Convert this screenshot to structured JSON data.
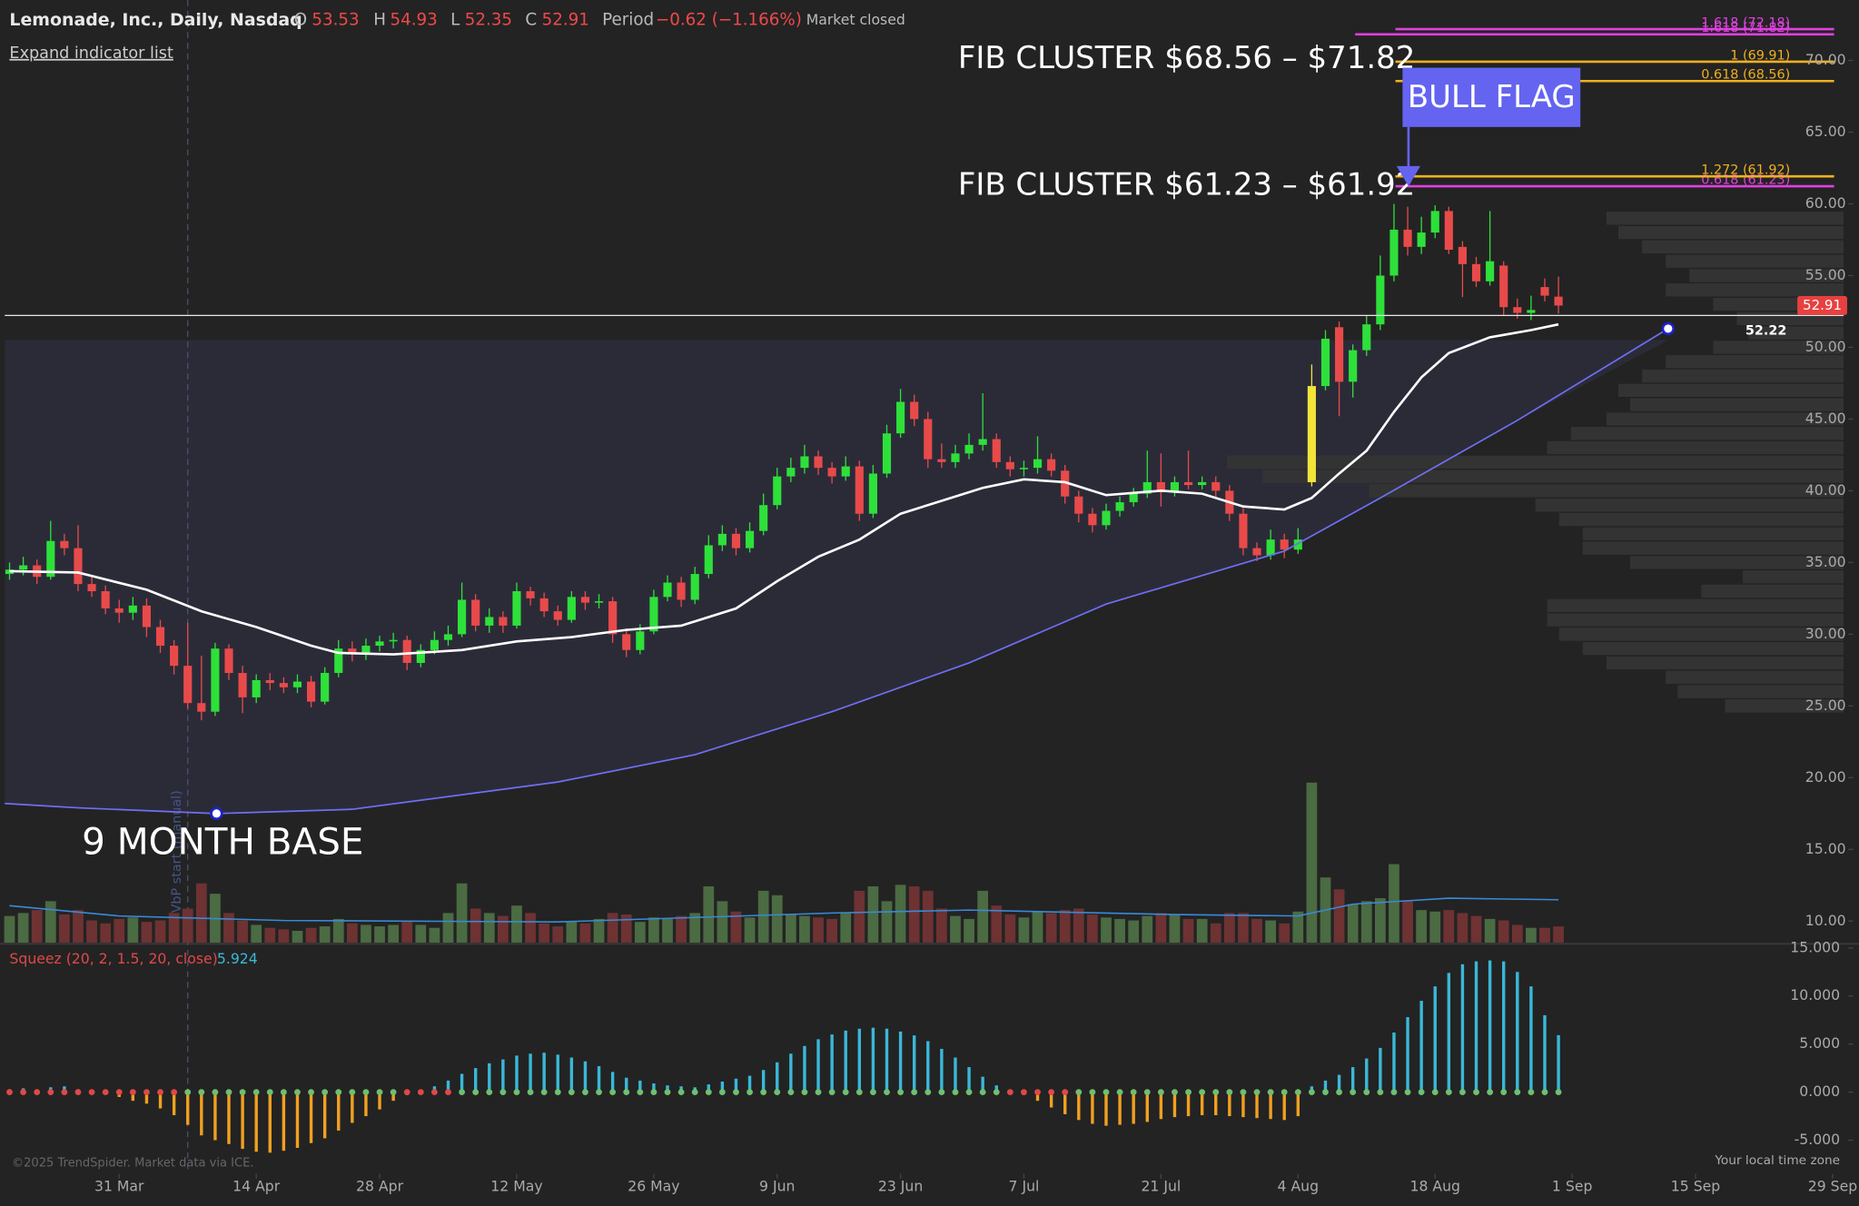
{
  "chart_data": {
    "type": "candlestick",
    "title": "Lemonade, Inc., Daily, Nasdaq",
    "ohlc_labels": [
      "O",
      "H",
      "L",
      "C"
    ],
    "period_label": "Period",
    "period": "−0.62 (−1.166%)",
    "status": "Market closed",
    "expand": "Expand indicator list",
    "xlim": [
      -0.35,
      133.8
    ],
    "xticks": [
      {
        "value": 8,
        "label": "31 Mar"
      },
      {
        "value": 18,
        "label": "14 Apr"
      },
      {
        "value": 27,
        "label": "28 Apr"
      },
      {
        "value": 37,
        "label": "12 May"
      },
      {
        "value": 47,
        "label": "26 May"
      },
      {
        "value": 56,
        "label": "9 Jun"
      },
      {
        "value": 65,
        "label": "23 Jun"
      },
      {
        "value": 74,
        "label": "7 Jul"
      },
      {
        "value": 84,
        "label": "21 Jul"
      },
      {
        "value": 94,
        "label": "4 Aug"
      },
      {
        "value": 104,
        "label": "18 Aug"
      },
      {
        "value": 114,
        "label": "1 Sep"
      },
      {
        "value": 123,
        "label": "15 Sep"
      },
      {
        "value": 133,
        "label": "29 Sep"
      }
    ],
    "ylim": [
      8.5,
      74.2
    ],
    "yticks": [
      {
        "value": 10,
        "label": "10.00"
      },
      {
        "value": 15,
        "label": "15.00"
      },
      {
        "value": 20,
        "label": "20.00"
      },
      {
        "value": 25,
        "label": "25.00"
      },
      {
        "value": 30,
        "label": "30.00"
      },
      {
        "value": 35,
        "label": "35.00"
      },
      {
        "value": 40,
        "label": "40.00"
      },
      {
        "value": 45,
        "label": "45.00"
      },
      {
        "value": 50,
        "label": "50.00"
      },
      {
        "value": 55,
        "label": "55.00"
      },
      {
        "value": 60,
        "label": "60.00"
      },
      {
        "value": 65,
        "label": "65.00"
      },
      {
        "value": 70,
        "label": "70.00"
      }
    ],
    "up_color": "#2ee03a",
    "down_color": "#e84a4a",
    "highlight_index": 95,
    "highlight_color": "#f2e43a",
    "candles": [
      [
        34.2,
        35.0,
        33.8,
        34.5
      ],
      [
        34.5,
        35.4,
        34.1,
        34.8
      ],
      [
        34.8,
        35.2,
        33.5,
        34.0
      ],
      [
        34.0,
        37.9,
        33.8,
        36.5
      ],
      [
        36.5,
        37.0,
        35.5,
        36.0
      ],
      [
        36.0,
        37.6,
        33.0,
        33.5
      ],
      [
        33.5,
        34.0,
        32.6,
        33.0
      ],
      [
        33.0,
        33.4,
        31.4,
        31.8
      ],
      [
        31.8,
        32.4,
        30.8,
        31.5
      ],
      [
        31.5,
        32.6,
        31.0,
        32.0
      ],
      [
        32.0,
        32.5,
        29.8,
        30.5
      ],
      [
        30.5,
        31.0,
        28.7,
        29.2
      ],
      [
        29.2,
        29.6,
        27.2,
        27.8
      ],
      [
        27.8,
        30.8,
        24.8,
        25.2
      ],
      [
        25.2,
        28.5,
        24.0,
        24.6
      ],
      [
        24.6,
        29.4,
        24.3,
        29.0
      ],
      [
        29.0,
        29.3,
        26.8,
        27.3
      ],
      [
        27.3,
        27.8,
        24.5,
        25.6
      ],
      [
        25.6,
        27.2,
        25.2,
        26.8
      ],
      [
        26.8,
        27.3,
        26.1,
        26.6
      ],
      [
        26.6,
        27.0,
        25.9,
        26.3
      ],
      [
        26.3,
        27.2,
        25.9,
        26.7
      ],
      [
        26.7,
        27.1,
        24.9,
        25.3
      ],
      [
        25.3,
        27.7,
        25.1,
        27.3
      ],
      [
        27.3,
        29.6,
        27.0,
        29.0
      ],
      [
        29.0,
        29.5,
        28.1,
        28.6
      ],
      [
        28.6,
        29.7,
        28.2,
        29.2
      ],
      [
        29.2,
        29.9,
        28.8,
        29.5
      ],
      [
        29.5,
        30.1,
        29.0,
        29.6
      ],
      [
        29.6,
        29.9,
        27.5,
        28.0
      ],
      [
        28.0,
        29.3,
        27.7,
        28.9
      ],
      [
        28.9,
        30.2,
        28.6,
        29.6
      ],
      [
        29.6,
        30.6,
        29.2,
        30.0
      ],
      [
        30.0,
        33.6,
        29.8,
        32.4
      ],
      [
        32.4,
        32.8,
        30.2,
        30.6
      ],
      [
        30.6,
        31.8,
        30.1,
        31.2
      ],
      [
        31.2,
        31.6,
        30.1,
        30.6
      ],
      [
        30.6,
        33.6,
        30.4,
        33.0
      ],
      [
        33.0,
        33.3,
        32.0,
        32.5
      ],
      [
        32.5,
        32.9,
        31.2,
        31.6
      ],
      [
        31.6,
        32.0,
        30.6,
        31.0
      ],
      [
        31.0,
        33.0,
        30.8,
        32.6
      ],
      [
        32.6,
        33.0,
        31.7,
        32.2
      ],
      [
        32.2,
        32.8,
        31.8,
        32.3
      ],
      [
        32.3,
        32.6,
        29.4,
        30.0
      ],
      [
        30.0,
        30.4,
        28.4,
        28.9
      ],
      [
        28.9,
        30.7,
        28.6,
        30.2
      ],
      [
        30.2,
        33.1,
        30.0,
        32.6
      ],
      [
        32.6,
        34.1,
        32.3,
        33.6
      ],
      [
        33.6,
        34.0,
        31.9,
        32.4
      ],
      [
        32.4,
        34.7,
        32.1,
        34.2
      ],
      [
        34.2,
        36.9,
        33.9,
        36.2
      ],
      [
        36.2,
        37.6,
        35.8,
        37.0
      ],
      [
        37.0,
        37.4,
        35.5,
        36.0
      ],
      [
        36.0,
        37.8,
        35.7,
        37.2
      ],
      [
        37.2,
        39.8,
        36.9,
        39.0
      ],
      [
        39.0,
        41.6,
        38.7,
        41.0
      ],
      [
        41.0,
        42.3,
        40.6,
        41.6
      ],
      [
        41.6,
        43.2,
        41.2,
        42.4
      ],
      [
        42.4,
        42.8,
        41.1,
        41.6
      ],
      [
        41.6,
        42.0,
        40.5,
        41.0
      ],
      [
        41.0,
        42.4,
        40.7,
        41.7
      ],
      [
        41.7,
        42.1,
        37.9,
        38.4
      ],
      [
        38.4,
        41.8,
        38.1,
        41.2
      ],
      [
        41.2,
        44.6,
        40.9,
        44.0
      ],
      [
        44.0,
        47.1,
        43.7,
        46.2
      ],
      [
        46.2,
        46.7,
        44.5,
        45.0
      ],
      [
        45.0,
        45.5,
        41.6,
        42.2
      ],
      [
        42.2,
        43.3,
        41.6,
        42.0
      ],
      [
        42.0,
        43.2,
        41.6,
        42.6
      ],
      [
        42.6,
        44.0,
        42.2,
        43.2
      ],
      [
        43.2,
        46.8,
        42.8,
        43.6
      ],
      [
        43.6,
        44.0,
        41.6,
        42.0
      ],
      [
        42.0,
        42.4,
        41.0,
        41.5
      ],
      [
        41.5,
        42.1,
        41.0,
        41.6
      ],
      [
        41.6,
        43.8,
        41.2,
        42.2
      ],
      [
        42.2,
        42.6,
        41.0,
        41.4
      ],
      [
        41.4,
        41.8,
        39.1,
        39.6
      ],
      [
        39.6,
        40.0,
        37.8,
        38.4
      ],
      [
        38.4,
        38.8,
        37.1,
        37.6
      ],
      [
        37.6,
        39.1,
        37.3,
        38.6
      ],
      [
        38.6,
        39.6,
        38.2,
        39.2
      ],
      [
        39.2,
        40.2,
        38.9,
        39.8
      ],
      [
        39.8,
        42.8,
        39.5,
        40.6
      ],
      [
        40.6,
        42.6,
        38.9,
        39.9
      ],
      [
        39.9,
        41.0,
        39.6,
        40.6
      ],
      [
        40.6,
        42.8,
        40.1,
        40.4
      ],
      [
        40.4,
        41.0,
        40.1,
        40.6
      ],
      [
        40.6,
        41.0,
        39.5,
        40.0
      ],
      [
        40.0,
        40.4,
        37.9,
        38.4
      ],
      [
        38.4,
        38.8,
        35.5,
        36.0
      ],
      [
        36.0,
        36.4,
        35.1,
        35.5
      ],
      [
        35.5,
        37.3,
        35.2,
        36.6
      ],
      [
        36.6,
        37.0,
        35.3,
        35.9
      ],
      [
        35.9,
        37.4,
        35.6,
        36.6
      ],
      [
        40.6,
        48.8,
        40.3,
        47.3
      ],
      [
        47.3,
        51.2,
        47.0,
        50.6
      ],
      [
        51.4,
        51.8,
        45.2,
        47.6
      ],
      [
        47.6,
        50.2,
        46.5,
        49.8
      ],
      [
        49.8,
        52.2,
        49.4,
        51.6
      ],
      [
        51.6,
        56.4,
        51.2,
        55.0
      ],
      [
        55.0,
        60.0,
        54.6,
        58.2
      ],
      [
        58.2,
        59.8,
        56.4,
        57.0
      ],
      [
        57.0,
        59.1,
        56.5,
        58.0
      ],
      [
        58.0,
        59.9,
        57.6,
        59.5
      ],
      [
        59.5,
        59.8,
        56.5,
        56.8
      ],
      [
        57.0,
        57.4,
        53.5,
        55.8
      ],
      [
        55.8,
        56.3,
        54.2,
        54.6
      ],
      [
        54.6,
        59.5,
        54.3,
        56.0
      ],
      [
        55.7,
        56.0,
        52.2,
        52.8
      ],
      [
        52.8,
        53.4,
        52.0,
        52.4
      ],
      [
        52.4,
        53.6,
        51.9,
        52.6
      ],
      [
        54.2,
        54.8,
        53.2,
        53.6
      ],
      [
        53.53,
        54.93,
        52.35,
        52.91
      ]
    ],
    "vlim": [
      0,
      12
    ],
    "vol_up_color": "#4b6b42",
    "vol_down_color": "#6e3232",
    "volumes": [
      1.8,
      2.0,
      2.2,
      2.8,
      1.9,
      2.2,
      1.5,
      1.3,
      1.6,
      1.7,
      1.4,
      1.5,
      2.0,
      2.3,
      4.0,
      3.3,
      2.0,
      1.5,
      1.2,
      1.0,
      0.9,
      0.8,
      1.0,
      1.1,
      1.6,
      1.3,
      1.2,
      1.1,
      1.2,
      1.5,
      1.2,
      1.0,
      2.0,
      4.0,
      2.3,
      2.0,
      1.8,
      2.5,
      2.0,
      1.3,
      1.1,
      1.4,
      1.3,
      1.6,
      2.0,
      1.9,
      1.4,
      1.7,
      1.6,
      1.8,
      2.0,
      3.8,
      2.8,
      2.1,
      1.7,
      3.5,
      3.2,
      1.9,
      1.8,
      1.7,
      1.6,
      2.0,
      3.5,
      3.8,
      2.8,
      3.9,
      3.8,
      3.5,
      2.3,
      1.8,
      1.6,
      3.5,
      2.5,
      1.9,
      1.7,
      2.1,
      2.0,
      2.2,
      2.3,
      1.9,
      1.7,
      1.6,
      1.5,
      1.8,
      2.0,
      1.9,
      1.6,
      1.6,
      1.3,
      2.0,
      2.0,
      1.6,
      1.5,
      1.3,
      2.1,
      10.8,
      4.4,
      3.6,
      2.6,
      2.8,
      3.0,
      5.3,
      2.8,
      2.2,
      2.1,
      2.2,
      2.0,
      1.8,
      1.6,
      1.5,
      1.2,
      1.0,
      1.0,
      1.1
    ],
    "vol_ma": {
      "color": "#3a8ad8",
      "x": [
        0,
        8,
        20,
        40,
        60,
        70,
        85,
        94,
        98,
        105,
        113
      ],
      "values": [
        2.5,
        1.8,
        1.5,
        1.4,
        2.0,
        2.2,
        1.9,
        1.8,
        2.6,
        3.0,
        2.9
      ]
    },
    "sma": {
      "color": "#ffffff",
      "x": [
        0,
        5,
        10,
        14,
        18,
        22,
        24,
        28,
        33,
        37,
        41,
        45,
        49,
        53,
        56,
        59,
        62,
        65,
        68,
        71,
        74,
        77,
        80,
        84,
        87,
        90,
        93,
        95,
        97,
        99,
        101,
        103,
        105,
        108,
        111,
        113
      ],
      "values": [
        34.4,
        34.3,
        33.1,
        31.6,
        30.5,
        29.2,
        28.7,
        28.6,
        28.9,
        29.5,
        29.8,
        30.3,
        30.6,
        31.8,
        33.7,
        35.4,
        36.6,
        38.4,
        39.3,
        40.2,
        40.8,
        40.6,
        39.7,
        40.0,
        39.8,
        38.9,
        38.7,
        39.5,
        41.2,
        42.8,
        45.5,
        47.9,
        49.6,
        50.7,
        51.2,
        51.6
      ]
    },
    "curve": {
      "color": "#6f6ff5",
      "x": [
        -0.35,
        5,
        15.1,
        25,
        40,
        50,
        60,
        70,
        80,
        93,
        100,
        110,
        121
      ],
      "values": [
        18.2,
        17.9,
        17.5,
        17.8,
        19.7,
        21.6,
        24.6,
        28.0,
        32.1,
        35.8,
        39.5,
        44.9,
        51.3
      ],
      "anchors": [
        2,
        12
      ]
    },
    "base_top": 50.5,
    "hline": 52.22,
    "fibs": [
      {
        "value": 71.82,
        "label": "1.618 (71.82)",
        "color": "#e040e0"
      },
      {
        "value": 72.18,
        "label": "1.618 (72.18)",
        "color": "#e040e0"
      },
      {
        "value": 69.91,
        "label": "1 (69.91)",
        "color": "#f0b020"
      },
      {
        "value": 68.56,
        "label": "0.618 (68.56)",
        "color": "#f0b020"
      },
      {
        "value": 61.23,
        "label": "0.618 (61.23)",
        "color": "#e040e0"
      },
      {
        "value": 61.92,
        "label": "1.272 (61.92)",
        "color": "#f0b020"
      }
    ],
    "annotations": {
      "fib_high": "FIB CLUSTER $68.56 – $71.82",
      "fib_low": "FIB CLUSTER $61.23 – $61.92",
      "flag": "BULL FLAG",
      "base": "9 MONTH BASE"
    },
    "vbp_index": 13,
    "vbp_label": "VbP start (manual)",
    "volume_profile": {
      "color": "#333333",
      "lim": [
        0,
        520
      ],
      "prices": [
        59,
        58,
        57,
        56,
        55,
        54,
        53,
        52,
        51,
        50,
        49,
        48,
        47,
        46,
        45,
        44,
        43,
        42,
        41,
        40,
        39,
        38,
        37,
        36,
        35,
        34,
        33,
        32,
        31,
        30,
        29,
        28,
        27,
        26,
        25
      ],
      "values": [
        200,
        190,
        170,
        150,
        130,
        150,
        110,
        90,
        80,
        110,
        150,
        170,
        190,
        180,
        200,
        230,
        250,
        520,
        490,
        400,
        260,
        240,
        220,
        220,
        180,
        85,
        120,
        250,
        250,
        240,
        220,
        200,
        150,
        140,
        100
      ]
    },
    "squeeze_label": "Squeez (20, 2, 1.5, 20, close)",
    "squeeze_ylim": [
      -8.5,
      15.3
    ],
    "squeeze_yticks": [
      {
        "value": 15,
        "label": "15.000"
      },
      {
        "value": 10,
        "label": "10.000"
      },
      {
        "value": 5,
        "label": "5.000"
      },
      {
        "value": 0,
        "label": "0.000"
      },
      {
        "value": -5,
        "label": "-5.000"
      }
    ],
    "squeeze_pos_color": "#3ab8d8",
    "squeeze_neg_color": "#f0a020",
    "squeeze": [
      0.3,
      0.4,
      0.3,
      0.5,
      0.6,
      0.3,
      0.1,
      -0.2,
      -0.5,
      -0.9,
      -1.2,
      -1.7,
      -2.4,
      -3.4,
      -4.5,
      -5.0,
      -5.4,
      -5.9,
      -6.2,
      -6.3,
      -6.1,
      -5.8,
      -5.3,
      -4.8,
      -4.0,
      -3.2,
      -2.5,
      -1.8,
      -0.9,
      -0.3,
      0.1,
      0.6,
      1.2,
      1.9,
      2.5,
      3.0,
      3.4,
      3.8,
      4.0,
      4.1,
      3.9,
      3.6,
      3.2,
      2.7,
      2.1,
      1.5,
      1.2,
      0.9,
      0.7,
      0.6,
      0.5,
      0.8,
      1.1,
      1.4,
      1.7,
      2.3,
      3.1,
      4.0,
      4.8,
      5.5,
      6.0,
      6.4,
      6.6,
      6.7,
      6.6,
      6.3,
      5.9,
      5.3,
      4.5,
      3.6,
      2.6,
      1.6,
      0.7,
      0.2,
      -0.3,
      -0.9,
      -1.6,
      -2.3,
      -2.9,
      -3.3,
      -3.5,
      -3.4,
      -3.3,
      -3.1,
      -2.8,
      -2.6,
      -2.5,
      -2.4,
      -2.4,
      -2.5,
      -2.6,
      -2.7,
      -2.8,
      -2.9,
      -2.5,
      0.6,
      1.2,
      1.8,
      2.6,
      3.5,
      4.6,
      6.2,
      7.8,
      9.5,
      11.0,
      12.4,
      13.3,
      13.6,
      13.7,
      13.6,
      12.5,
      11.0,
      8.0,
      5.924
    ],
    "squeeze_dots": [
      {
        "from": 0,
        "to": 12,
        "color": "#e04848"
      },
      {
        "from": 13,
        "to": 28,
        "color": "#6fbf6f"
      },
      {
        "from": 29,
        "to": 32,
        "color": "#e04848"
      },
      {
        "from": 33,
        "to": 72,
        "color": "#6fbf6f"
      },
      {
        "from": 73,
        "to": 77,
        "color": "#e04848"
      },
      {
        "from": 78,
        "to": 113,
        "color": "#6fbf6f"
      }
    ],
    "copyright": "©2025 TrendSpider. Market data via ICE.",
    "timezone": "Your local time zone"
  }
}
